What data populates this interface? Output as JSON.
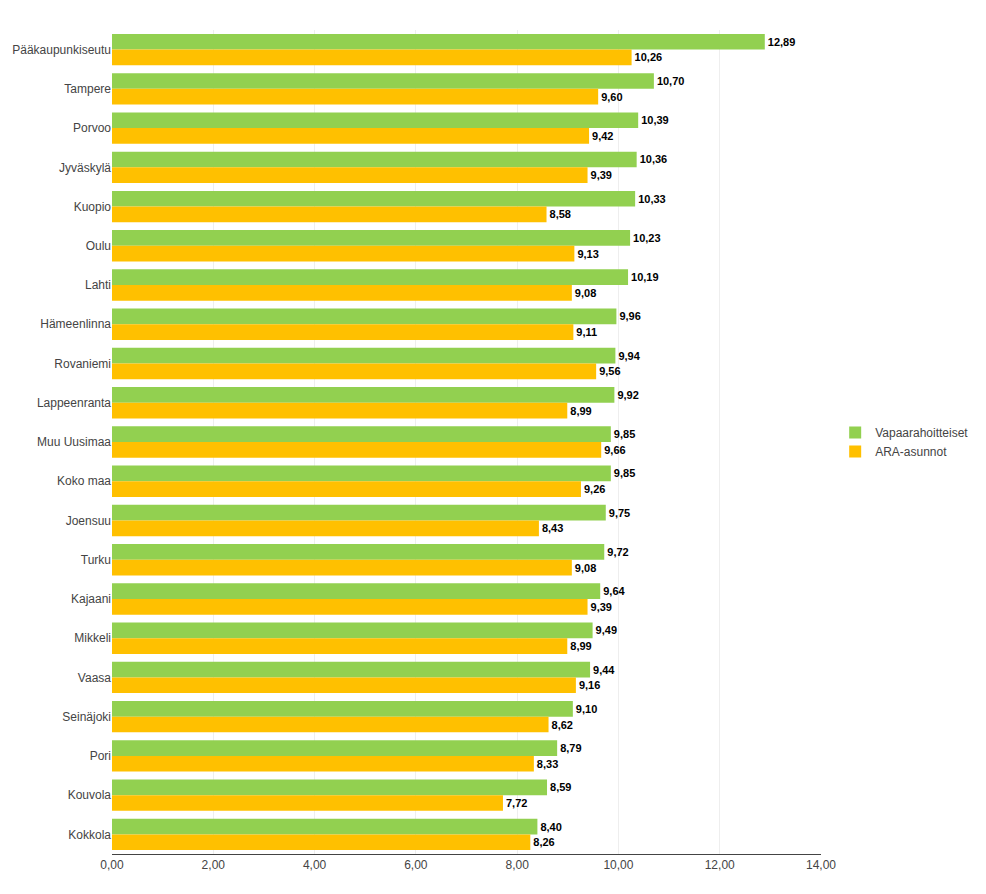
{
  "chart_data": {
    "type": "bar",
    "orientation": "horizontal",
    "categories": [
      "Pääkaupunkiseutu",
      "Tampere",
      "Porvoo",
      "Jyväskylä",
      "Kuopio",
      "Oulu",
      "Lahti",
      "Hämeenlinna",
      "Rovaniemi",
      "Lappeenranta",
      "Muu Uusimaa",
      "Koko maa",
      "Joensuu",
      "Turku",
      "Kajaani",
      "Mikkeli",
      "Vaasa",
      "Seinäjoki",
      "Pori",
      "Kouvola",
      "Kokkola"
    ],
    "series": [
      {
        "name": "Vapaarahoitteiset",
        "color": "#92D050",
        "values": [
          12.89,
          10.7,
          10.39,
          10.36,
          10.33,
          10.23,
          10.19,
          9.96,
          9.94,
          9.92,
          9.85,
          9.85,
          9.75,
          9.72,
          9.64,
          9.49,
          9.44,
          9.1,
          8.79,
          8.59,
          8.4
        ],
        "value_labels": [
          "12,89",
          "10,70",
          "10,39",
          "10,36",
          "10,33",
          "10,23",
          "10,19",
          "9,96",
          "9,94",
          "9,92",
          "9,85",
          "9,85",
          "9,75",
          "9,72",
          "9,64",
          "9,49",
          "9,44",
          "9,10",
          "8,79",
          "8,59",
          "8,40"
        ]
      },
      {
        "name": "ARA-asunnot",
        "color": "#FFC000",
        "values": [
          10.26,
          9.6,
          9.42,
          9.39,
          8.58,
          9.13,
          9.08,
          9.11,
          9.56,
          8.99,
          9.66,
          9.26,
          8.43,
          9.08,
          9.39,
          8.99,
          9.16,
          8.62,
          8.33,
          7.72,
          8.26
        ],
        "value_labels": [
          "10,26",
          "9,60",
          "9,42",
          "9,39",
          "8,58",
          "9,13",
          "9,08",
          "9,11",
          "9,56",
          "8,99",
          "9,66",
          "9,26",
          "8,43",
          "9,08",
          "9,39",
          "8,99",
          "9,16",
          "8,62",
          "8,33",
          "7,72",
          "8,26"
        ]
      }
    ],
    "xlim": [
      0,
      14
    ],
    "xticks": [
      {
        "value": 0,
        "label": "0,00"
      },
      {
        "value": 2,
        "label": "2,00"
      },
      {
        "value": 4,
        "label": "4,00"
      },
      {
        "value": 6,
        "label": "6,00"
      },
      {
        "value": 8,
        "label": "8,00"
      },
      {
        "value": 10,
        "label": "10,00"
      },
      {
        "value": 12,
        "label": "12,00"
      },
      {
        "value": 14,
        "label": "14,00"
      }
    ],
    "grid": true,
    "legend": "right",
    "data_labels": true
  }
}
